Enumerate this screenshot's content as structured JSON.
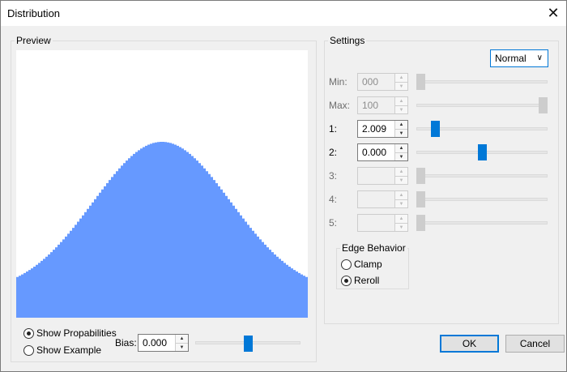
{
  "window": {
    "title": "Distribution"
  },
  "preview": {
    "legend": "Preview",
    "show_probabilities": "Show Propabilities",
    "show_example": "Show Example",
    "bias_label": "Bias:",
    "bias_value": "0.000",
    "bias_slider_fraction": 0.5,
    "fill_color": "#6699ff"
  },
  "settings": {
    "legend": "Settings",
    "distribution": "Normal",
    "rows": [
      {
        "label": "Min:",
        "value": "000",
        "enabled": false,
        "slider_fraction": 0.0
      },
      {
        "label": "Max:",
        "value": "100",
        "enabled": false,
        "slider_fraction": 1.0
      },
      {
        "label": "1:",
        "value": "2.009",
        "enabled": true,
        "slider_fraction": 0.12
      },
      {
        "label": "2:",
        "value": "0.000",
        "enabled": true,
        "slider_fraction": 0.5
      },
      {
        "label": "3:",
        "value": "",
        "enabled": false,
        "slider_fraction": 0.0
      },
      {
        "label": "4:",
        "value": "",
        "enabled": false,
        "slider_fraction": 0.0
      },
      {
        "label": "5:",
        "value": "",
        "enabled": false,
        "slider_fraction": 0.0
      }
    ],
    "edge_behavior": {
      "legend": "Edge Behavior",
      "clamp": "Clamp",
      "reroll": "Reroll",
      "selected": "Reroll"
    }
  },
  "buttons": {
    "ok": "OK",
    "cancel": "Cancel"
  },
  "icons": {
    "close": "close-icon",
    "dropdown": "chevron-down-icon"
  },
  "colors": {
    "accent": "#0078d7",
    "curve": "#6699ff"
  }
}
